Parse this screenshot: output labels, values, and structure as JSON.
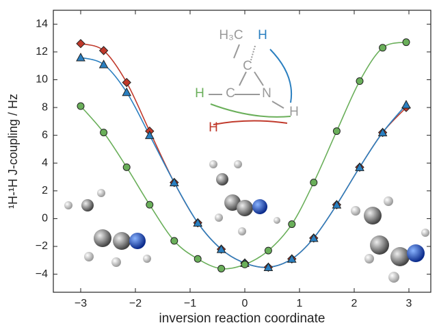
{
  "chart_data": {
    "type": "line",
    "x_label": "inversion reaction coordinate",
    "y_label": "¹H-¹H J-coupling / Hz",
    "x": [
      -3,
      -2.58,
      -2.16,
      -1.74,
      -1.29,
      -0.86,
      -0.43,
      0,
      0.43,
      0.86,
      1.26,
      1.68,
      2.1,
      2.52,
      2.95
    ],
    "series": [
      {
        "color": "#c0392b",
        "marker": "diamond",
        "values": [
          12.6,
          12.1,
          9.8,
          6.3,
          2.6,
          -0.3,
          -2.2,
          -3.2,
          -3.5,
          -2.9,
          -1.4,
          1.0,
          3.7,
          6.2,
          8.0
        ]
      },
      {
        "color": "#2a7fc0",
        "marker": "triangle",
        "values": [
          11.6,
          11.1,
          9.1,
          6.0,
          2.6,
          -0.3,
          -2.2,
          -3.2,
          -3.5,
          -2.9,
          -1.4,
          1.0,
          3.7,
          6.2,
          8.2
        ]
      },
      {
        "color": "#6aaf5a",
        "marker": "circle",
        "values": [
          8.1,
          6.2,
          3.7,
          1.0,
          -1.6,
          -2.9,
          -3.6,
          -3.3,
          -2.3,
          -0.4,
          2.6,
          6.3,
          9.9,
          12.3,
          12.7
        ]
      }
    ],
    "xlim": [
      -3.5,
      3.4
    ],
    "ylim": [
      -5.3,
      15
    ],
    "xticks": [
      {
        "value": -3,
        "label": "−3"
      },
      {
        "value": -2,
        "label": "−2"
      },
      {
        "value": -1,
        "label": "−1"
      },
      0,
      1,
      2,
      3
    ],
    "yticks": [
      {
        "value": -4,
        "label": "−4"
      },
      {
        "value": -2,
        "label": "−2"
      },
      0,
      2,
      4,
      6,
      8,
      10,
      12,
      14
    ],
    "annotations": [
      {
        "text": "H₃C",
        "color": "#999999"
      },
      {
        "text": "H",
        "color": "#2a7fc0"
      },
      {
        "text": "C",
        "color": "#999999"
      },
      {
        "text": "H",
        "color": "#6aaf5a"
      },
      {
        "text": "C",
        "color": "#999999"
      },
      {
        "text": "N",
        "color": "#999999"
      },
      {
        "text": "H",
        "color": "#999999"
      },
      {
        "text": "H",
        "color": "#c0392b"
      }
    ]
  }
}
